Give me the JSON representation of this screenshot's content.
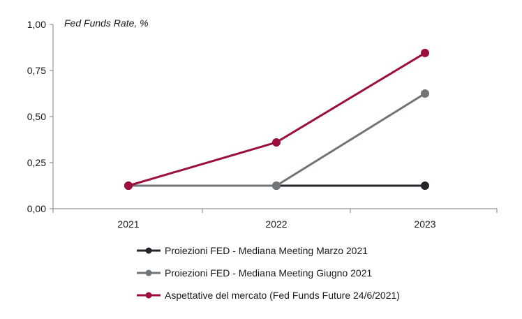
{
  "chart_data": {
    "type": "line",
    "y_unit_label": "Fed Funds Rate, %",
    "x": [
      "2021",
      "2022",
      "2023"
    ],
    "ylim": [
      0,
      1
    ],
    "yticks": [
      "0,00",
      "0,25",
      "0,50",
      "0,75",
      "1,00"
    ],
    "ytick_values": [
      0,
      0.25,
      0.5,
      0.75,
      1.0
    ],
    "grid": false,
    "legend_position": "bottom",
    "series": [
      {
        "name": "Proiezioni FED - Mediana Meeting Marzo 2021",
        "color": "#22262b",
        "values": [
          0.125,
          0.125,
          0.125
        ]
      },
      {
        "name": "Proiezioni FED - Mediana Meeting Giugno 2021",
        "color": "#6e7478",
        "values": [
          0.125,
          0.125,
          0.625
        ]
      },
      {
        "name": "Aspettative del mercato (Fed Funds Future 24/6/2021)",
        "color": "#9b0f3f",
        "values": [
          0.125,
          0.36,
          0.845
        ]
      }
    ]
  }
}
